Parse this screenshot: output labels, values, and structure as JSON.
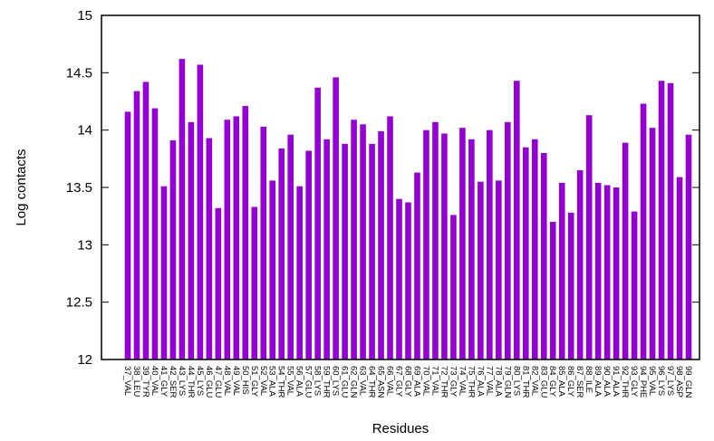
{
  "chart_data": {
    "type": "bar",
    "xlabel": "Residues",
    "ylabel": "Log contacts",
    "ylim": [
      12,
      15
    ],
    "yticks": [
      "12",
      "12.5",
      "13",
      "13.5",
      "14",
      "14.5",
      "15"
    ],
    "bar_color": "#9400d3",
    "grid": false,
    "legend": "none",
    "categories": [
      "37_VAL",
      "38_LEU",
      "39_TYR",
      "40_VAL",
      "41_GLY",
      "42_SER",
      "43_LYS",
      "44_THR",
      "45_LYS",
      "46_GLU",
      "47_GLU",
      "48_VAL",
      "49_VAL",
      "50_HIS",
      "51_GLY",
      "52_VAL",
      "53_ALA",
      "54_THR",
      "55_VAL",
      "56_ALA",
      "57_GLU",
      "58_LYS",
      "59_THR",
      "60_LYS",
      "61_GLU",
      "62_GLN",
      "63_VAL",
      "64_THR",
      "65_ASN",
      "66_VAL",
      "67_GLY",
      "68_GLY",
      "69_ALA",
      "70_VAL",
      "71_VAL",
      "72_THR",
      "73_GLY",
      "74_VAL",
      "75_THR",
      "76_ALA",
      "77_VAL",
      "78_ALA",
      "79_GLN",
      "80_LYS",
      "81_THR",
      "82_VAL",
      "83_GLU",
      "84_GLY",
      "85_ALA",
      "86_GLY",
      "87_SER",
      "88_ILE",
      "89_ALA",
      "90_ALA",
      "91_ALA",
      "92_THR",
      "93_GLY",
      "94_PHE",
      "95_VAL",
      "96_LYS",
      "97_LYS",
      "98_ASP",
      "99_GLN"
    ],
    "values": [
      14.16,
      14.34,
      14.42,
      14.19,
      13.51,
      13.91,
      14.62,
      14.07,
      14.57,
      13.93,
      13.32,
      14.09,
      14.12,
      14.21,
      13.33,
      14.03,
      13.56,
      13.84,
      13.96,
      13.51,
      13.82,
      14.37,
      13.92,
      14.46,
      13.88,
      14.09,
      14.05,
      13.88,
      13.99,
      14.12,
      13.4,
      13.37,
      13.63,
      14.0,
      14.07,
      13.97,
      13.26,
      14.02,
      13.92,
      13.55,
      14.0,
      13.56,
      14.07,
      14.43,
      13.85,
      13.92,
      13.8,
      13.2,
      13.54,
      13.28,
      13.65,
      14.13,
      13.54,
      13.52,
      13.5,
      13.89,
      13.29,
      14.23,
      14.02,
      14.43,
      14.41,
      13.59,
      13.96
    ]
  }
}
